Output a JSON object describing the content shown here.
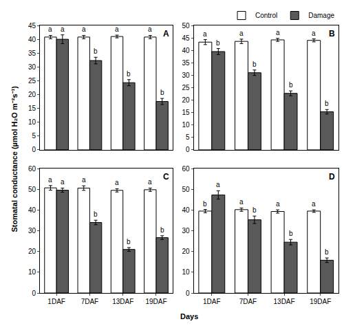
{
  "y_label": "Stomatal conductance (µmol H₂O m⁻²s⁻¹)",
  "x_label": "Days",
  "chart_data": [
    {
      "type": "bar",
      "title": "A",
      "categories": [
        "1DAF",
        "7DAF",
        "13DAF",
        "19DAF"
      ],
      "series": [
        {
          "name": "Control",
          "color": "#ffffff",
          "values": [
            40.8,
            40.8,
            41.0,
            40.8
          ],
          "errors": [
            0.6,
            0.6,
            0.5,
            0.6
          ],
          "letters": [
            "a",
            "a",
            "a",
            "a"
          ]
        },
        {
          "name": "Damage",
          "color": "#595959",
          "values": [
            40.0,
            32.3,
            24.3,
            17.5
          ],
          "errors": [
            1.6,
            1.2,
            1.1,
            1.1
          ],
          "letters": [
            "a",
            "b",
            "b",
            "b"
          ]
        }
      ],
      "ylim": [
        0,
        45
      ],
      "yticks": [
        0,
        5,
        10,
        15,
        20,
        25,
        30,
        35,
        40,
        45
      ],
      "grid": false,
      "tick_labels": "y"
    },
    {
      "type": "bar",
      "title": "B",
      "categories": [
        "1DAF",
        "7DAF",
        "13DAF",
        "19DAF"
      ],
      "series": [
        {
          "name": "Control",
          "color": "#ffffff",
          "values": [
            43.3,
            43.6,
            44.2,
            44.0
          ],
          "errors": [
            1.0,
            0.9,
            0.6,
            0.6
          ],
          "letters": [
            "a",
            "a",
            "a",
            "a"
          ]
        },
        {
          "name": "Damage",
          "color": "#595959",
          "values": [
            39.5,
            31.0,
            22.7,
            15.3
          ],
          "errors": [
            1.2,
            1.1,
            1.0,
            0.9
          ],
          "letters": [
            "b",
            "b",
            "b",
            "b"
          ]
        }
      ],
      "ylim": [
        0,
        50
      ],
      "yticks": [
        0,
        5,
        10,
        15,
        20,
        25,
        30,
        35,
        40,
        45,
        50
      ],
      "grid": false,
      "tick_labels": "y",
      "legend": "top right"
    },
    {
      "type": "bar",
      "title": "C",
      "categories": [
        "1DAF",
        "7DAF",
        "13DAF",
        "19DAF"
      ],
      "series": [
        {
          "name": "Control",
          "color": "#ffffff",
          "values": [
            50.7,
            50.6,
            49.5,
            49.8
          ],
          "errors": [
            1.1,
            1.1,
            0.8,
            0.8
          ],
          "letters": [
            "a",
            "a",
            "a",
            "a"
          ]
        },
        {
          "name": "Damage",
          "color": "#595959",
          "values": [
            49.6,
            34.0,
            21.0,
            26.7
          ],
          "errors": [
            1.0,
            1.1,
            0.9,
            0.9
          ],
          "letters": [
            "a",
            "b",
            "b",
            "b"
          ]
        }
      ],
      "ylim": [
        0,
        60
      ],
      "yticks": [
        0,
        10,
        20,
        30,
        40,
        50,
        60
      ],
      "grid": false
    },
    {
      "type": "bar",
      "title": "D",
      "categories": [
        "1DAF",
        "7DAF",
        "13DAF",
        "19DAF"
      ],
      "series": [
        {
          "name": "Control",
          "color": "#ffffff",
          "values": [
            39.5,
            40.2,
            39.3,
            39.5
          ],
          "errors": [
            0.8,
            0.8,
            0.8,
            0.6
          ],
          "letters": [
            "b",
            "a",
            "a",
            "a"
          ]
        },
        {
          "name": "Damage",
          "color": "#595959",
          "values": [
            47.3,
            35.3,
            24.5,
            15.8
          ],
          "errors": [
            2.0,
            1.8,
            1.3,
            1.1
          ],
          "letters": [
            "a",
            "b",
            "b",
            "b"
          ]
        }
      ],
      "ylim": [
        0,
        60
      ],
      "yticks": [
        0,
        10,
        20,
        30,
        40,
        50,
        60
      ],
      "grid": false
    }
  ]
}
